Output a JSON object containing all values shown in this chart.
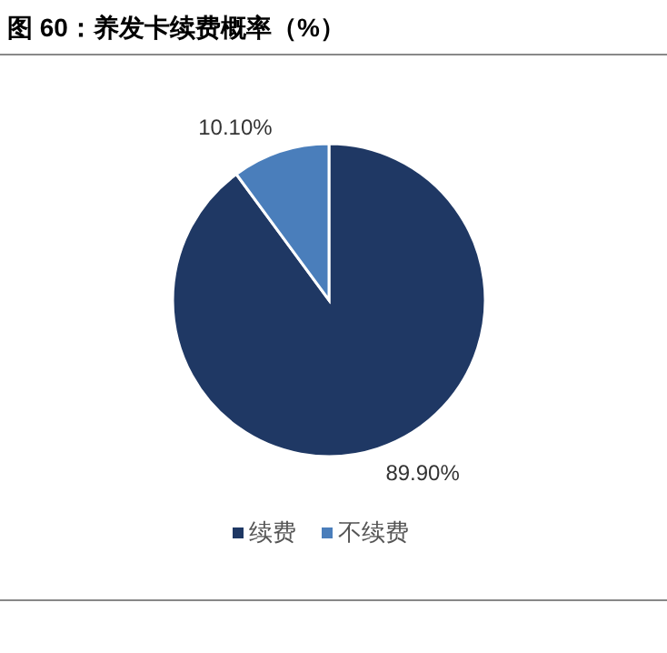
{
  "chart_data": {
    "type": "pie",
    "title": "图 60：养发卡续费概率（%）",
    "categories": [
      "续费",
      "不续费"
    ],
    "values": [
      89.9,
      10.1
    ],
    "colors": [
      "#1f3864",
      "#4a7ebb"
    ],
    "value_labels": [
      "89.90%",
      "10.10%"
    ],
    "legend": "bottom"
  }
}
